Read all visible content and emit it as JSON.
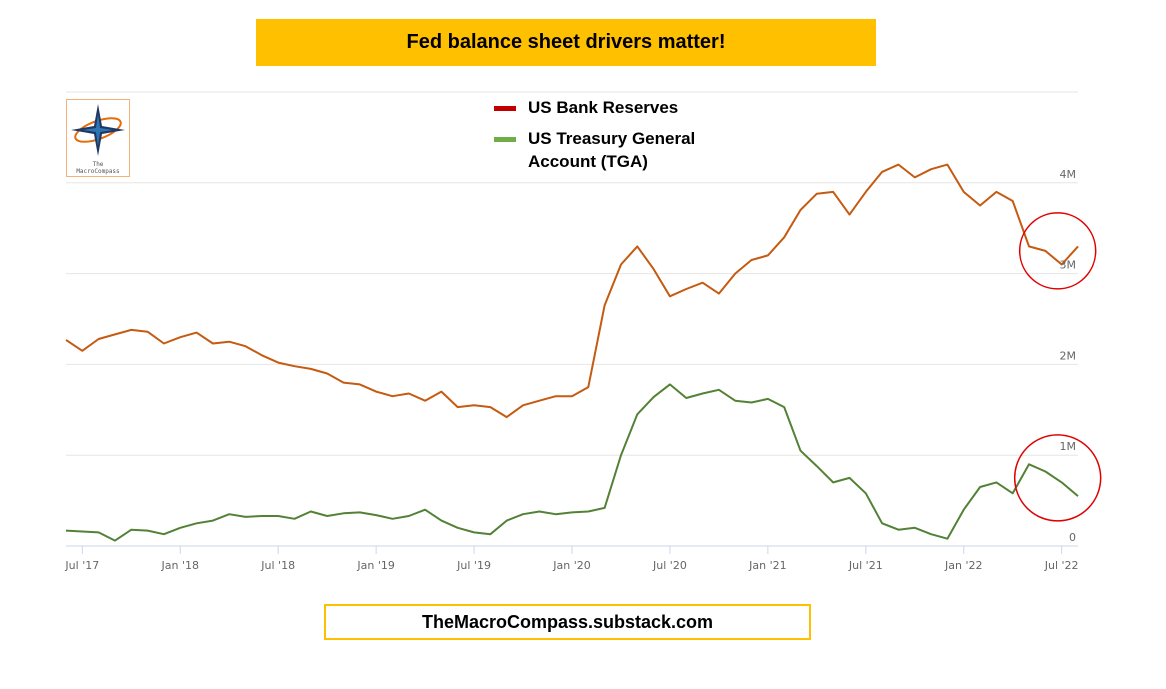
{
  "title": "Fed balance sheet drivers matter!",
  "footer": "TheMacroCompass.substack.com",
  "logo": {
    "line1": "The",
    "line2": "MacroCompass"
  },
  "colors": {
    "banner": "#ffc000",
    "reserves_line": "#c55a11",
    "tga_line": "#538135",
    "reserves_swatch": "#c00000",
    "tga_swatch": "#70ad47",
    "circle": "#e00000"
  },
  "chart_data": {
    "type": "line",
    "y_ticks": [
      "0",
      "1M",
      "2M",
      "3M",
      "4M"
    ],
    "y_tick_values": [
      0,
      1000000,
      2000000,
      3000000,
      4000000
    ],
    "ylim": [
      0,
      5000000
    ],
    "x_ticks": [
      "Jul '17",
      "Jan '18",
      "Jul '18",
      "Jan '19",
      "Jul '19",
      "Jan '20",
      "Jul '20",
      "Jan '21",
      "Jul '21",
      "Jan '22",
      "Jul '22"
    ],
    "x_tick_values": [
      "2017-07",
      "2018-01",
      "2018-07",
      "2019-01",
      "2019-07",
      "2020-01",
      "2020-07",
      "2021-01",
      "2021-07",
      "2022-01",
      "2022-07"
    ],
    "xlim": [
      "2017-06",
      "2022-08"
    ],
    "grid": true,
    "legend_position": "top-center",
    "series": [
      {
        "name": "US Bank Reserves",
        "color": "#c55a11",
        "points": [
          [
            "2017-06",
            2270000
          ],
          [
            "2017-07",
            2150000
          ],
          [
            "2017-08",
            2280000
          ],
          [
            "2017-09",
            2330000
          ],
          [
            "2017-10",
            2380000
          ],
          [
            "2017-11",
            2360000
          ],
          [
            "2017-12",
            2230000
          ],
          [
            "2018-01",
            2300000
          ],
          [
            "2018-02",
            2350000
          ],
          [
            "2018-03",
            2230000
          ],
          [
            "2018-04",
            2250000
          ],
          [
            "2018-05",
            2200000
          ],
          [
            "2018-06",
            2100000
          ],
          [
            "2018-07",
            2020000
          ],
          [
            "2018-08",
            1980000
          ],
          [
            "2018-09",
            1950000
          ],
          [
            "2018-10",
            1900000
          ],
          [
            "2018-11",
            1800000
          ],
          [
            "2018-12",
            1780000
          ],
          [
            "2019-01",
            1700000
          ],
          [
            "2019-02",
            1650000
          ],
          [
            "2019-03",
            1680000
          ],
          [
            "2019-04",
            1600000
          ],
          [
            "2019-05",
            1700000
          ],
          [
            "2019-06",
            1530000
          ],
          [
            "2019-07",
            1550000
          ],
          [
            "2019-08",
            1530000
          ],
          [
            "2019-09",
            1420000
          ],
          [
            "2019-10",
            1550000
          ],
          [
            "2019-11",
            1600000
          ],
          [
            "2019-12",
            1650000
          ],
          [
            "2020-01",
            1650000
          ],
          [
            "2020-02",
            1750000
          ],
          [
            "2020-03",
            2650000
          ],
          [
            "2020-04",
            3100000
          ],
          [
            "2020-05",
            3300000
          ],
          [
            "2020-06",
            3050000
          ],
          [
            "2020-07",
            2750000
          ],
          [
            "2020-08",
            2830000
          ],
          [
            "2020-09",
            2900000
          ],
          [
            "2020-10",
            2780000
          ],
          [
            "2020-11",
            3000000
          ],
          [
            "2020-12",
            3150000
          ],
          [
            "2021-01",
            3200000
          ],
          [
            "2021-02",
            3400000
          ],
          [
            "2021-03",
            3700000
          ],
          [
            "2021-04",
            3880000
          ],
          [
            "2021-05",
            3900000
          ],
          [
            "2021-06",
            3650000
          ],
          [
            "2021-07",
            3900000
          ],
          [
            "2021-08",
            4120000
          ],
          [
            "2021-09",
            4200000
          ],
          [
            "2021-10",
            4060000
          ],
          [
            "2021-11",
            4150000
          ],
          [
            "2021-12",
            4200000
          ],
          [
            "2022-01",
            3900000
          ],
          [
            "2022-02",
            3750000
          ],
          [
            "2022-03",
            3900000
          ],
          [
            "2022-04",
            3800000
          ],
          [
            "2022-05",
            3300000
          ],
          [
            "2022-06",
            3250000
          ],
          [
            "2022-07",
            3100000
          ],
          [
            "2022-08",
            3300000
          ]
        ]
      },
      {
        "name": "US Treasury General Account (TGA)",
        "color": "#538135",
        "points": [
          [
            "2017-06",
            170000
          ],
          [
            "2017-07",
            160000
          ],
          [
            "2017-08",
            150000
          ],
          [
            "2017-09",
            60000
          ],
          [
            "2017-10",
            180000
          ],
          [
            "2017-11",
            170000
          ],
          [
            "2017-12",
            130000
          ],
          [
            "2018-01",
            200000
          ],
          [
            "2018-02",
            250000
          ],
          [
            "2018-03",
            280000
          ],
          [
            "2018-04",
            350000
          ],
          [
            "2018-05",
            320000
          ],
          [
            "2018-06",
            330000
          ],
          [
            "2018-07",
            330000
          ],
          [
            "2018-08",
            300000
          ],
          [
            "2018-09",
            380000
          ],
          [
            "2018-10",
            330000
          ],
          [
            "2018-11",
            360000
          ],
          [
            "2018-12",
            370000
          ],
          [
            "2019-01",
            340000
          ],
          [
            "2019-02",
            300000
          ],
          [
            "2019-03",
            330000
          ],
          [
            "2019-04",
            400000
          ],
          [
            "2019-05",
            280000
          ],
          [
            "2019-06",
            200000
          ],
          [
            "2019-07",
            150000
          ],
          [
            "2019-08",
            130000
          ],
          [
            "2019-09",
            280000
          ],
          [
            "2019-10",
            350000
          ],
          [
            "2019-11",
            380000
          ],
          [
            "2019-12",
            350000
          ],
          [
            "2020-01",
            370000
          ],
          [
            "2020-02",
            380000
          ],
          [
            "2020-03",
            420000
          ],
          [
            "2020-04",
            1000000
          ],
          [
            "2020-05",
            1450000
          ],
          [
            "2020-06",
            1640000
          ],
          [
            "2020-07",
            1780000
          ],
          [
            "2020-08",
            1630000
          ],
          [
            "2020-09",
            1680000
          ],
          [
            "2020-10",
            1720000
          ],
          [
            "2020-11",
            1600000
          ],
          [
            "2020-12",
            1580000
          ],
          [
            "2021-01",
            1620000
          ],
          [
            "2021-02",
            1530000
          ],
          [
            "2021-03",
            1050000
          ],
          [
            "2021-04",
            880000
          ],
          [
            "2021-05",
            700000
          ],
          [
            "2021-06",
            750000
          ],
          [
            "2021-07",
            580000
          ],
          [
            "2021-08",
            250000
          ],
          [
            "2021-09",
            180000
          ],
          [
            "2021-10",
            200000
          ],
          [
            "2021-11",
            130000
          ],
          [
            "2021-12",
            80000
          ],
          [
            "2022-01",
            400000
          ],
          [
            "2022-02",
            650000
          ],
          [
            "2022-03",
            700000
          ],
          [
            "2022-04",
            580000
          ],
          [
            "2022-05",
            900000
          ],
          [
            "2022-06",
            820000
          ],
          [
            "2022-07",
            700000
          ],
          [
            "2022-08",
            550000
          ]
        ]
      }
    ]
  }
}
